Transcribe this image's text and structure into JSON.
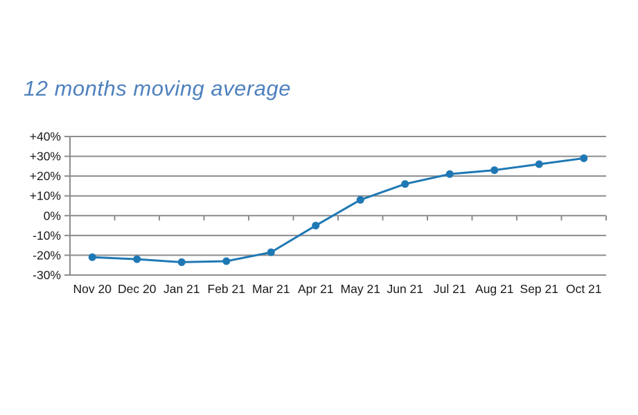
{
  "chart_data": {
    "type": "line",
    "title": "12 months moving average",
    "categories": [
      "Nov 20",
      "Dec 20",
      "Jan 21",
      "Feb 21",
      "Mar 21",
      "Apr 21",
      "May 21",
      "Jun 21",
      "Jul 21",
      "Aug 21",
      "Sep 21",
      "Oct 21"
    ],
    "series": [
      {
        "name": "12 months moving average",
        "values": [
          -21,
          -22,
          -23.5,
          -23,
          -18.5,
          -5,
          8,
          16,
          21,
          23,
          26,
          29
        ]
      }
    ],
    "xlabel": "",
    "ylabel": "",
    "ylim": [
      -30,
      40
    ],
    "ytick_step": 10,
    "ytick_labels": [
      "+40%",
      "+30%",
      "+20%",
      "+10%",
      "0%",
      "-10%",
      "-20%",
      "-30%"
    ],
    "grid": true,
    "legend": "none",
    "colors": {
      "line": "#1F78B4",
      "marker": "#1F78B4",
      "title": "#4E81BD",
      "grid": "#8C8C8C",
      "axis": "#8C8C8C",
      "tick_label": "#1A1A1A",
      "background": "#FFFFFF"
    }
  }
}
